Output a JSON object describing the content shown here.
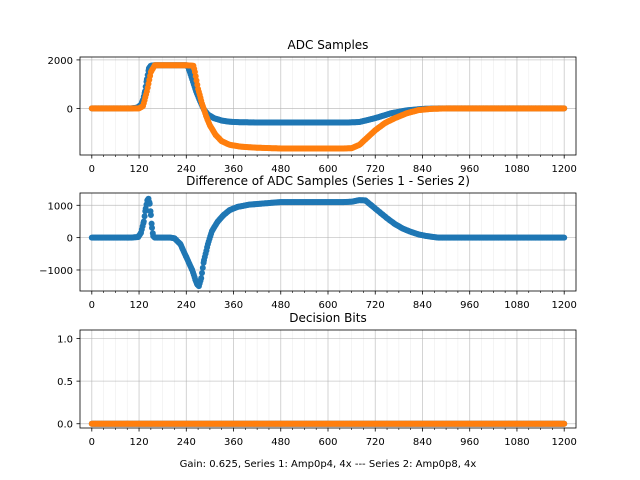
{
  "chart_data": [
    {
      "type": "scatter",
      "title": "ADC Samples",
      "xlim": [
        -30,
        1230
      ],
      "ylim": [
        -1920,
        2120
      ],
      "xticks": [
        "0",
        "120",
        "240",
        "360",
        "480",
        "600",
        "720",
        "840",
        "960",
        "1080",
        "1200"
      ],
      "yticks": [
        "2000",
        "0"
      ],
      "grid": true,
      "series": [
        {
          "color": "#1f77b4",
          "points": [
            [
              0,
              0
            ],
            [
              100,
              0
            ],
            [
              115,
              30
            ],
            [
              125,
              150
            ],
            [
              130,
              350
            ],
            [
              135,
              700
            ],
            [
              140,
              1200
            ],
            [
              145,
              1650
            ],
            [
              150,
              1760
            ],
            [
              160,
              1780
            ],
            [
              240,
              1780
            ],
            [
              245,
              1700
            ],
            [
              255,
              1200
            ],
            [
              265,
              700
            ],
            [
              275,
              300
            ],
            [
              285,
              -50
            ],
            [
              295,
              -250
            ],
            [
              310,
              -400
            ],
            [
              330,
              -500
            ],
            [
              350,
              -550
            ],
            [
              380,
              -570
            ],
            [
              420,
              -580
            ],
            [
              500,
              -580
            ],
            [
              600,
              -580
            ],
            [
              650,
              -580
            ],
            [
              680,
              -560
            ],
            [
              720,
              -400
            ],
            [
              760,
              -200
            ],
            [
              800,
              -80
            ],
            [
              840,
              -20
            ],
            [
              880,
              0
            ],
            [
              960,
              0
            ],
            [
              1080,
              0
            ],
            [
              1200,
              0
            ]
          ]
        },
        {
          "color": "#ff7f0e",
          "points": [
            [
              0,
              0
            ],
            [
              100,
              0
            ],
            [
              120,
              0
            ],
            [
              130,
              100
            ],
            [
              140,
              700
            ],
            [
              150,
              1500
            ],
            [
              160,
              1780
            ],
            [
              240,
              1780
            ],
            [
              258,
              1760
            ],
            [
              262,
              1500
            ],
            [
              270,
              800
            ],
            [
              280,
              200
            ],
            [
              290,
              -300
            ],
            [
              300,
              -700
            ],
            [
              315,
              -1100
            ],
            [
              330,
              -1350
            ],
            [
              350,
              -1500
            ],
            [
              380,
              -1580
            ],
            [
              420,
              -1620
            ],
            [
              480,
              -1650
            ],
            [
              560,
              -1650
            ],
            [
              640,
              -1650
            ],
            [
              660,
              -1640
            ],
            [
              680,
              -1500
            ],
            [
              700,
              -1200
            ],
            [
              720,
              -900
            ],
            [
              745,
              -600
            ],
            [
              770,
              -400
            ],
            [
              800,
              -200
            ],
            [
              830,
              -70
            ],
            [
              860,
              -20
            ],
            [
              900,
              0
            ],
            [
              960,
              0
            ],
            [
              1080,
              0
            ],
            [
              1200,
              0
            ]
          ]
        }
      ]
    },
    {
      "type": "scatter",
      "title": "Difference of ADC Samples (Series 1 - Series 2)",
      "xlim": [
        -30,
        1230
      ],
      "ylim": [
        -1650,
        1380
      ],
      "xticks": [
        "0",
        "120",
        "240",
        "360",
        "480",
        "600",
        "720",
        "840",
        "960",
        "1080",
        "1200"
      ],
      "yticks": [
        "1000",
        "0",
        "−1000"
      ],
      "grid": true,
      "series": [
        {
          "color": "#1f77b4",
          "points": [
            [
              0,
              0
            ],
            [
              100,
              0
            ],
            [
              118,
              20
            ],
            [
              125,
              150
            ],
            [
              132,
              500
            ],
            [
              137,
              900
            ],
            [
              141,
              1150
            ],
            [
              144,
              1200
            ],
            [
              147,
              1050
            ],
            [
              150,
              700
            ],
            [
              153,
              300
            ],
            [
              156,
              50
            ],
            [
              160,
              0
            ],
            [
              200,
              0
            ],
            [
              210,
              -20
            ],
            [
              225,
              -200
            ],
            [
              240,
              -600
            ],
            [
              255,
              -1000
            ],
            [
              263,
              -1300
            ],
            [
              268,
              -1450
            ],
            [
              272,
              -1500
            ],
            [
              278,
              -1250
            ],
            [
              285,
              -700
            ],
            [
              295,
              -200
            ],
            [
              305,
              200
            ],
            [
              320,
              500
            ],
            [
              335,
              700
            ],
            [
              350,
              850
            ],
            [
              370,
              950
            ],
            [
              400,
              1020
            ],
            [
              430,
              1050
            ],
            [
              460,
              1080
            ],
            [
              480,
              1100
            ],
            [
              560,
              1100
            ],
            [
              640,
              1100
            ],
            [
              660,
              1110
            ],
            [
              680,
              1160
            ],
            [
              695,
              1150
            ],
            [
              710,
              1000
            ],
            [
              730,
              800
            ],
            [
              750,
              600
            ],
            [
              770,
              420
            ],
            [
              790,
              280
            ],
            [
              810,
              180
            ],
            [
              830,
              100
            ],
            [
              850,
              50
            ],
            [
              880,
              0
            ],
            [
              960,
              0
            ],
            [
              1080,
              0
            ],
            [
              1200,
              0
            ]
          ]
        }
      ]
    },
    {
      "type": "scatter",
      "title": "Decision Bits",
      "xlim": [
        -30,
        1230
      ],
      "ylim": [
        -0.05,
        1.1
      ],
      "xticks": [
        "0",
        "120",
        "240",
        "360",
        "480",
        "600",
        "720",
        "840",
        "960",
        "1080",
        "1200"
      ],
      "yticks": [
        "1.0",
        "0.5",
        "0.0"
      ],
      "xlabel": "Gain: 0.625, Series 1: Amp0p4, 4x --- Series 2: Amp0p8, 4x",
      "grid": true,
      "series": [
        {
          "color": "#1f77b4",
          "points": [
            [
              0,
              0
            ],
            [
              1200,
              0
            ]
          ]
        },
        {
          "color": "#ff7f0e",
          "points": [
            [
              0,
              0
            ],
            [
              1200,
              0
            ]
          ]
        }
      ]
    }
  ]
}
